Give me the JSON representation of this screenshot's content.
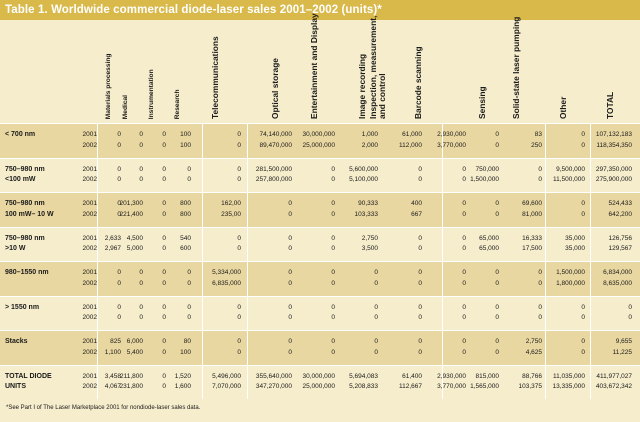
{
  "title": "Table 1. Worldwide commercial diode-laser sales 2001–2002 (units)*",
  "columns": [
    "Materials processing",
    "Medical",
    "Instrumentation",
    "Research",
    "Telecommunications",
    "Optical storage",
    "Entertainment and Display",
    "Image recording",
    "Inspection, measurement, and control",
    "Barcode scanning",
    "Sensing",
    "Solid-state laser pumping",
    "Other",
    "TOTAL"
  ],
  "rows": [
    {
      "label1": "< 700 nm",
      "label2": "",
      "y1": "2001",
      "v1": [
        "0",
        "0",
        "0",
        "100",
        "0",
        "74,140,000",
        "30,000,000",
        "1,000",
        "61,000",
        "2,930,000",
        "0",
        "83",
        "0",
        "107,132,183"
      ],
      "y2": "2002",
      "v2": [
        "0",
        "0",
        "0",
        "100",
        "0",
        "89,470,000",
        "25,000,000",
        "2,000",
        "112,000",
        "3,770,000",
        "0",
        "250",
        "0",
        "118,354,350"
      ]
    },
    {
      "label1": "750–980 nm",
      "label2": "<100 mW",
      "y1": "2001",
      "v1": [
        "0",
        "0",
        "0",
        "0",
        "0",
        "281,500,000",
        "0",
        "5,600,000",
        "0",
        "0",
        "750,000",
        "0",
        "9,500,000",
        "297,350,000"
      ],
      "y2": "2002",
      "v2": [
        "0",
        "0",
        "0",
        "0",
        "0",
        "257,800,000",
        "0",
        "5,100,000",
        "0",
        "0",
        "1,500,000",
        "0",
        "11,500,000",
        "275,900,000"
      ]
    },
    {
      "label1": "750–980 nm",
      "label2": "100 mW– 10 W",
      "y1": "2001",
      "v1": [
        "0",
        "201,300",
        "0",
        "800",
        "162,00",
        "0",
        "0",
        "90,333",
        "400",
        "0",
        "0",
        "69,600",
        "0",
        "524,433"
      ],
      "y2": "2002",
      "v2": [
        "0",
        "221,400",
        "0",
        "800",
        "235,00",
        "0",
        "0",
        "103,333",
        "667",
        "0",
        "0",
        "81,000",
        "0",
        "642,200"
      ]
    },
    {
      "label1": "750–980 nm",
      "label2": ">10 W",
      "y1": "2001",
      "v1": [
        "2,633",
        "4,500",
        "0",
        "540",
        "0",
        "0",
        "0",
        "2,750",
        "0",
        "0",
        "65,000",
        "16,333",
        "35,000",
        "126,756"
      ],
      "y2": "2002",
      "v2": [
        "2,967",
        "5,000",
        "0",
        "600",
        "0",
        "0",
        "0",
        "3,500",
        "0",
        "0",
        "65,000",
        "17,500",
        "35,000",
        "129,567"
      ]
    },
    {
      "label1": "980–1550 nm",
      "label2": "",
      "y1": "2001",
      "v1": [
        "0",
        "0",
        "0",
        "0",
        "5,334,000",
        "0",
        "0",
        "0",
        "0",
        "0",
        "0",
        "0",
        "1,500,000",
        "6,834,000"
      ],
      "y2": "2002",
      "v2": [
        "0",
        "0",
        "0",
        "0",
        "6,835,000",
        "0",
        "0",
        "0",
        "0",
        "0",
        "0",
        "0",
        "1,800,000",
        "8,635,000"
      ]
    },
    {
      "label1": "> 1550 nm",
      "label2": "",
      "y1": "2001",
      "v1": [
        "0",
        "0",
        "0",
        "0",
        "0",
        "0",
        "0",
        "0",
        "0",
        "0",
        "0",
        "0",
        "0",
        "0"
      ],
      "y2": "2002",
      "v2": [
        "0",
        "0",
        "0",
        "0",
        "0",
        "0",
        "0",
        "0",
        "0",
        "0",
        "0",
        "0",
        "0",
        "0"
      ]
    },
    {
      "label1": "Stacks",
      "label2": "",
      "y1": "2001",
      "v1": [
        "825",
        "6,000",
        "0",
        "80",
        "0",
        "0",
        "0",
        "0",
        "0",
        "0",
        "0",
        "2,750",
        "0",
        "9,655"
      ],
      "y2": "2002",
      "v2": [
        "1,100",
        "5,400",
        "0",
        "100",
        "0",
        "0",
        "0",
        "0",
        "0",
        "0",
        "0",
        "4,625",
        "0",
        "11,225"
      ]
    },
    {
      "label1": "TOTAL DIODE",
      "label2": "UNITS",
      "y1": "2001",
      "v1": [
        "3,458",
        "211,800",
        "0",
        "1,520",
        "5,496,000",
        "355,640,000",
        "30,000,000",
        "5,694,083",
        "61,400",
        "2,930,000",
        "815,000",
        "88,766",
        "11,035,000",
        "411,977,027"
      ],
      "y2": "2002",
      "v2": [
        "4,067",
        "231,800",
        "0",
        "1,600",
        "7,070,000",
        "347,270,000",
        "25,000,000",
        "5,208,833",
        "112,667",
        "3,770,000",
        "1,565,000",
        "103,375",
        "13,335,000",
        "403,672,342"
      ]
    }
  ],
  "footnote": "*See Part I of The Laser Marketplace 2001 for nondiode-laser sales data.",
  "colors": {
    "title_bg": "#d9b94a",
    "band_dark": "#e9d7a1",
    "band_light": "#f6edcc"
  }
}
